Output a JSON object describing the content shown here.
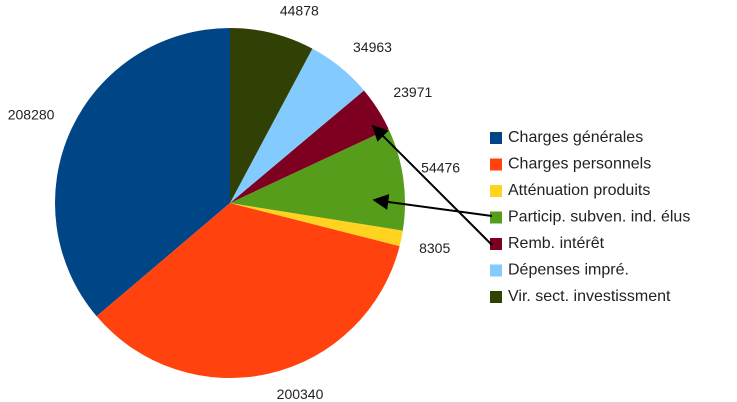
{
  "chart_data": {
    "type": "pie",
    "categories": [
      "Charges générales",
      "Charges personnels",
      "Atténuation produits",
      "Particip. subven. ind. élus",
      "Remb. intérêt",
      "Dépenses impré.",
      "Vir. sect. investissment"
    ],
    "values": [
      208280,
      200340,
      8305,
      54476,
      23971,
      34963,
      44878
    ],
    "colors": [
      "#004586",
      "#ff420e",
      "#ffd320",
      "#579d1c",
      "#7e0021",
      "#83caff",
      "#314004"
    ],
    "legend": "right"
  }
}
